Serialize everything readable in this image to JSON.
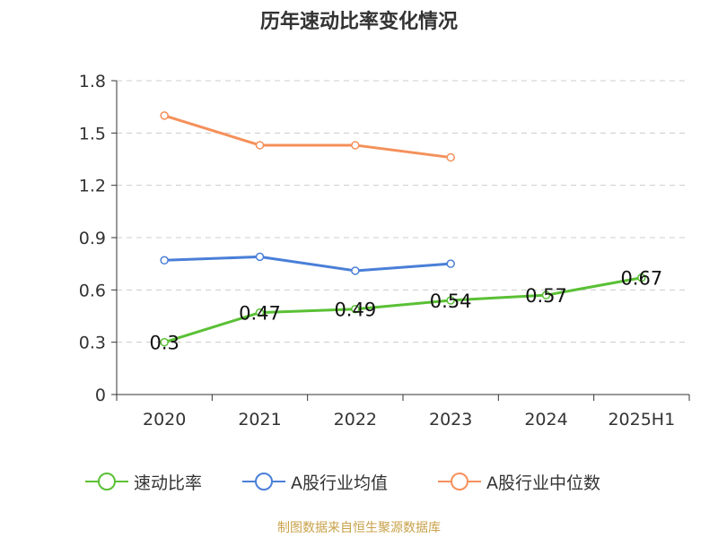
{
  "title": "历年速动比率变化情况",
  "source_note": "制图数据来自恒生聚源数据库",
  "chart_data": {
    "type": "line",
    "title": "历年速动比率变化情况",
    "xlabel": "",
    "ylabel": "",
    "categories": [
      "2020",
      "2021",
      "2022",
      "2023",
      "2024",
      "2025H1"
    ],
    "ylim": [
      0,
      1.8
    ],
    "yticks": [
      0,
      0.3,
      0.6,
      0.9,
      1.2,
      1.5,
      1.8
    ],
    "ytick_labels": [
      "0",
      "0.3",
      "0.6",
      "0.9",
      "1.2",
      "1.5",
      "1.8"
    ],
    "grid": true,
    "legend_position": "bottom",
    "series": [
      {
        "name": "速动比率",
        "color": "#5ac035",
        "values": [
          0.3,
          0.47,
          0.49,
          0.54,
          0.57,
          0.67
        ],
        "labels": [
          "0.3",
          "0.47",
          "0.49",
          "0.54",
          "0.57",
          "0.67"
        ]
      },
      {
        "name": "A股行业均值",
        "color": "#4a7fd8",
        "values": [
          0.77,
          0.79,
          0.71,
          0.75,
          null,
          null
        ]
      },
      {
        "name": "A股行业中位数",
        "color": "#f5905a",
        "values": [
          1.6,
          1.43,
          1.43,
          1.36,
          null,
          null
        ]
      }
    ]
  }
}
